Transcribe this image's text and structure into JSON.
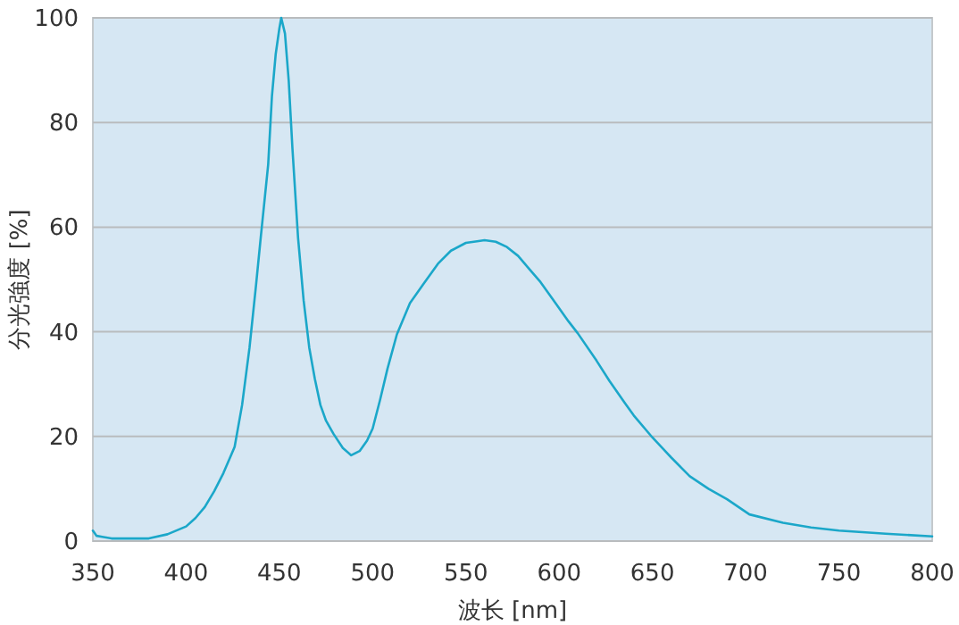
{
  "chart_data": {
    "type": "line",
    "xlabel": "波长 [nm]",
    "ylabel": "分光強度 [%]",
    "xlim": [
      350,
      800
    ],
    "ylim": [
      0,
      100
    ],
    "xticks": [
      350,
      400,
      450,
      500,
      550,
      600,
      650,
      700,
      750,
      800
    ],
    "yticks": [
      0,
      20,
      40,
      60,
      80,
      100
    ],
    "grid": "y",
    "marker": "none",
    "line_style": "solid",
    "series": [
      {
        "color": "#1ba7c9",
        "x": [
          350,
          352,
          355,
          360,
          370,
          380,
          390,
          400,
          405,
          410,
          415,
          420,
          426,
          430,
          434,
          437.5,
          440,
          444,
          446,
          448,
          450,
          451,
          453,
          455,
          457,
          460,
          463,
          466,
          469,
          472,
          475,
          479,
          484,
          488.5,
          493,
          497,
          500,
          504,
          508,
          513,
          520,
          527,
          535,
          542,
          550,
          556,
          560,
          566,
          572,
          578,
          584,
          590,
          596,
          600,
          605,
          610,
          620,
          627,
          635,
          640,
          650,
          660,
          670,
          680,
          690,
          702,
          720,
          735,
          750,
          775,
          800
        ],
        "values": [
          2,
          1,
          0.8,
          0.5,
          0.5,
          0.5,
          1.3,
          2.8,
          4.4,
          6.5,
          9.5,
          13,
          18,
          26,
          37,
          49,
          58,
          72,
          85,
          93,
          98,
          100,
          97,
          88,
          75,
          58,
          46,
          37,
          31,
          26,
          23,
          20.5,
          17.8,
          16.4,
          17.2,
          19.2,
          21.5,
          27,
          33,
          39.5,
          45.5,
          49,
          53,
          55.5,
          57,
          57.3,
          57.5,
          57.2,
          56.2,
          54.5,
          52,
          49.5,
          46.5,
          44.5,
          42,
          39.7,
          34.5,
          30.6,
          26.5,
          24,
          19.8,
          16,
          12.4,
          10,
          8,
          5.1,
          3.5,
          2.6,
          2,
          1.4,
          0.9
        ]
      }
    ]
  }
}
